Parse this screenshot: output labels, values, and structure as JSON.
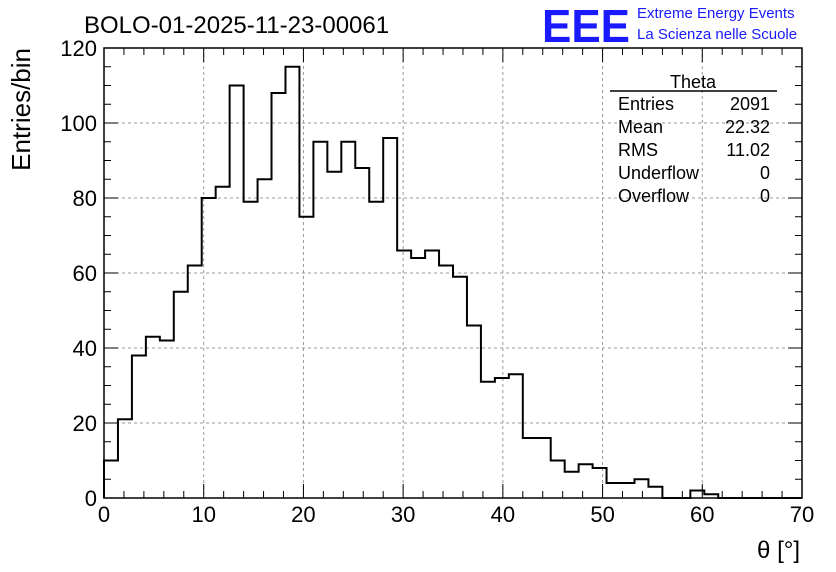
{
  "chart_data": {
    "type": "histogram",
    "title": "BOLO-01-2025-11-23-00061",
    "xlabel": "θ [°]",
    "ylabel": "Entries/bin",
    "xlim": [
      0,
      70
    ],
    "ylim": [
      0,
      120
    ],
    "x_ticks": [
      0,
      10,
      20,
      30,
      40,
      50,
      60,
      70
    ],
    "y_ticks": [
      0,
      20,
      40,
      60,
      80,
      100,
      120
    ],
    "bin_width": 1.4,
    "grid": true,
    "values": [
      10,
      21,
      38,
      43,
      42,
      55,
      62,
      80,
      83,
      110,
      79,
      85,
      108,
      115,
      75,
      95,
      87,
      95,
      88,
      79,
      96,
      66,
      64,
      66,
      62,
      59,
      46,
      31,
      32,
      33,
      16,
      16,
      10,
      7,
      9,
      8,
      4,
      4,
      5,
      3,
      0,
      0,
      2,
      1,
      0,
      0,
      0,
      0,
      0,
      0
    ],
    "stats_box": {
      "title": "Theta",
      "rows": [
        {
          "label": "Entries",
          "value": "2091"
        },
        {
          "label": "Mean",
          "value": "22.32"
        },
        {
          "label": "RMS",
          "value": "11.02"
        },
        {
          "label": "Underflow",
          "value": "0"
        },
        {
          "label": "Overflow",
          "value": "0"
        }
      ]
    }
  },
  "logo": {
    "big": "EEE",
    "line1": "Extreme Energy Events",
    "line2": "La Scienza nelle Scuole"
  },
  "colors": {
    "logo": "#1a1aff",
    "line": "#000000",
    "grid": "#9a9a9a"
  }
}
